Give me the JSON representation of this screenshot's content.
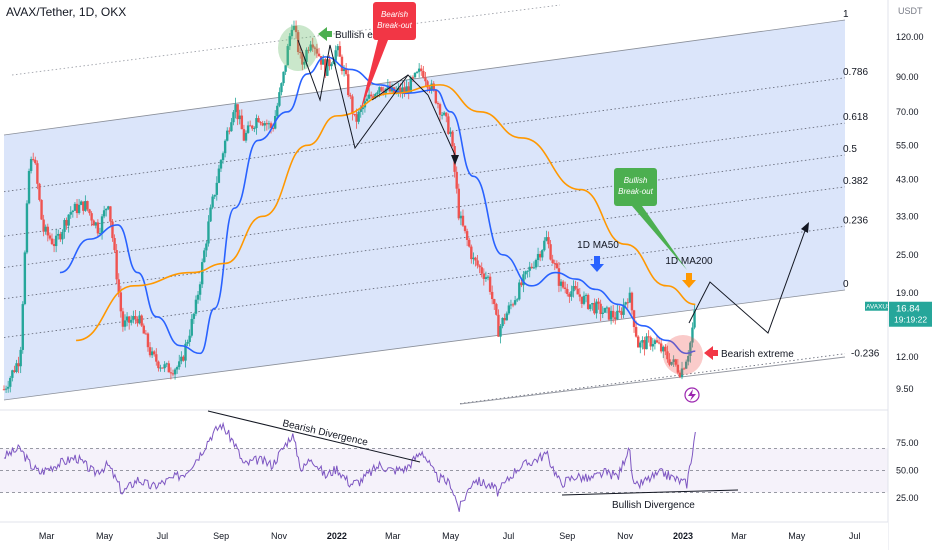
{
  "header": {
    "symbol_title": "AVAX/Tether, 1D, OKX"
  },
  "colors": {
    "candle_up": "#26a69a",
    "candle_down": "#ef5350",
    "ma50": "#2962ff",
    "ma200": "#ff9800",
    "channel_fill": "#cfdcf8",
    "rsi": "#7e57c2",
    "price_tag": "#26a69a",
    "green_label": "#4caf50",
    "red_label": "#f23645"
  },
  "chart_data": [
    {
      "type": "candlestick",
      "title": "AVAX/Tether, 1D, OKX",
      "y_scale": "log",
      "y_unit": "USDT",
      "ylim": [
        8.3,
        150
      ],
      "y_ticks": [
        "120.00",
        "90.00",
        "70.00",
        "55.00",
        "43.00",
        "33.00",
        "25.00",
        "19.00",
        "12.00",
        "9.50"
      ],
      "x_ticks": [
        "Mar",
        "May",
        "Jul",
        "Sep",
        "Nov",
        "2022",
        "Mar",
        "May",
        "Jul",
        "Sep",
        "Nov",
        "2023",
        "Mar",
        "May",
        "Jul"
      ],
      "last_price": {
        "symbol": "AVAXUSDT",
        "value": "16.84",
        "countdown": "19:19:22"
      },
      "price_path": [
        [
          "2021-01-15",
          9.5
        ],
        [
          "2021-02-01",
          12
        ],
        [
          "2021-02-10",
          45
        ],
        [
          "2021-02-15",
          52
        ],
        [
          "2021-02-25",
          30
        ],
        [
          "2021-03-10",
          27
        ],
        [
          "2021-03-25",
          34
        ],
        [
          "2021-04-10",
          36
        ],
        [
          "2021-04-25",
          30
        ],
        [
          "2021-05-05",
          37
        ],
        [
          "2021-05-20",
          15
        ],
        [
          "2021-06-05",
          16
        ],
        [
          "2021-06-20",
          12
        ],
        [
          "2021-07-05",
          11
        ],
        [
          "2021-07-20",
          11.2
        ],
        [
          "2021-08-05",
          17
        ],
        [
          "2021-08-20",
          33
        ],
        [
          "2021-09-01",
          50
        ],
        [
          "2021-09-15",
          75
        ],
        [
          "2021-09-25",
          58
        ],
        [
          "2021-10-10",
          68
        ],
        [
          "2021-10-25",
          62
        ],
        [
          "2021-11-05",
          88
        ],
        [
          "2021-11-15",
          135
        ],
        [
          "2021-11-25",
          98
        ],
        [
          "2021-12-05",
          120
        ],
        [
          "2021-12-20",
          95
        ],
        [
          "2022-01-01",
          110
        ],
        [
          "2022-01-10",
          90
        ],
        [
          "2022-01-20",
          65
        ],
        [
          "2022-02-01",
          75
        ],
        [
          "2022-02-15",
          85
        ],
        [
          "2022-03-01",
          80
        ],
        [
          "2022-03-15",
          82
        ],
        [
          "2022-04-01",
          95
        ],
        [
          "2022-04-15",
          78
        ],
        [
          "2022-05-01",
          60
        ],
        [
          "2022-05-10",
          33
        ],
        [
          "2022-05-25",
          24
        ],
        [
          "2022-06-10",
          21
        ],
        [
          "2022-06-20",
          14.5
        ],
        [
          "2022-07-10",
          19
        ],
        [
          "2022-07-25",
          23
        ],
        [
          "2022-08-10",
          28
        ],
        [
          "2022-08-25",
          20
        ],
        [
          "2022-09-10",
          19
        ],
        [
          "2022-09-25",
          17.5
        ],
        [
          "2022-10-10",
          16.5
        ],
        [
          "2022-10-25",
          16
        ],
        [
          "2022-11-05",
          19
        ],
        [
          "2022-11-15",
          13
        ],
        [
          "2022-12-01",
          13.5
        ],
        [
          "2022-12-15",
          12
        ],
        [
          "2022-12-30",
          10.8
        ],
        [
          "2023-01-08",
          12.8
        ],
        [
          "2023-01-14",
          16.84
        ]
      ],
      "indicators": [
        {
          "name": "1D MA50",
          "values": [
            [
              "2021-03-15",
              22
            ],
            [
              "2021-04-15",
              28
            ],
            [
              "2021-05-15",
              31
            ],
            [
              "2021-06-05",
              22
            ],
            [
              "2021-06-25",
              16
            ],
            [
              "2021-07-20",
              13
            ],
            [
              "2021-08-10",
              12.3
            ],
            [
              "2021-08-25",
              17
            ],
            [
              "2021-09-15",
              35
            ],
            [
              "2021-10-10",
              57
            ],
            [
              "2021-11-10",
              70
            ],
            [
              "2021-12-01",
              92
            ],
            [
              "2021-12-20",
              104
            ],
            [
              "2022-01-15",
              95
            ],
            [
              "2022-02-15",
              85
            ],
            [
              "2022-03-15",
              80
            ],
            [
              "2022-04-15",
              82
            ],
            [
              "2022-05-01",
              70
            ],
            [
              "2022-05-25",
              44
            ],
            [
              "2022-06-25",
              25
            ],
            [
              "2022-07-25",
              20
            ],
            [
              "2022-08-20",
              22
            ],
            [
              "2022-09-10",
              21
            ],
            [
              "2022-10-01",
              19.5
            ],
            [
              "2022-10-25",
              17.5
            ],
            [
              "2022-11-20",
              15
            ],
            [
              "2022-12-15",
              13.5
            ],
            [
              "2023-01-05",
              12.3
            ],
            [
              "2023-01-14",
              12.5
            ]
          ]
        },
        {
          "name": "1D MA200",
          "values": [
            [
              "2021-04-01",
              13.5
            ],
            [
              "2021-06-01",
              20
            ],
            [
              "2021-08-01",
              22
            ],
            [
              "2021-09-05",
              23.5
            ],
            [
              "2021-10-15",
              33
            ],
            [
              "2021-12-01",
              55
            ],
            [
              "2022-01-01",
              68
            ],
            [
              "2022-03-01",
              80
            ],
            [
              "2022-04-20",
              85
            ],
            [
              "2022-06-01",
              70
            ],
            [
              "2022-07-15",
              58
            ],
            [
              "2022-09-15",
              40
            ],
            [
              "2022-11-01",
              27
            ],
            [
              "2022-12-15",
              20
            ],
            [
              "2023-01-14",
              17.5
            ]
          ]
        }
      ]
    },
    {
      "type": "line",
      "title": "RSI",
      "ylim": [
        5,
        105
      ],
      "y_ticks": [
        "75.00",
        "50.00",
        "25.00"
      ],
      "band": [
        30,
        70
      ],
      "series": [
        {
          "name": "",
          "values": [
            [
              "2021-01-15",
              63
            ],
            [
              "2021-02-01",
              70
            ],
            [
              "2021-02-12",
              55
            ],
            [
              "2021-02-22",
              48
            ],
            [
              "2021-03-10",
              55
            ],
            [
              "2021-04-01",
              62
            ],
            [
              "2021-04-20",
              48
            ],
            [
              "2021-05-05",
              55
            ],
            [
              "2021-05-20",
              30
            ],
            [
              "2021-06-05",
              42
            ],
            [
              "2021-06-20",
              35
            ],
            [
              "2021-07-10",
              42
            ],
            [
              "2021-07-25",
              48
            ],
            [
              "2021-08-10",
              65
            ],
            [
              "2021-08-20",
              80
            ],
            [
              "2021-09-01",
              92
            ],
            [
              "2021-09-15",
              75
            ],
            [
              "2021-09-25",
              55
            ],
            [
              "2021-10-10",
              60
            ],
            [
              "2021-10-25",
              55
            ],
            [
              "2021-11-05",
              70
            ],
            [
              "2021-11-15",
              83
            ],
            [
              "2021-11-25",
              50
            ],
            [
              "2021-12-05",
              62
            ],
            [
              "2021-12-20",
              45
            ],
            [
              "2022-01-01",
              52
            ],
            [
              "2022-01-15",
              38
            ],
            [
              "2022-01-25",
              40
            ],
            [
              "2022-02-15",
              55
            ],
            [
              "2022-03-01",
              50
            ],
            [
              "2022-03-15",
              52
            ],
            [
              "2022-04-01",
              68
            ],
            [
              "2022-04-15",
              45
            ],
            [
              "2022-05-01",
              38
            ],
            [
              "2022-05-10",
              15
            ],
            [
              "2022-05-25",
              42
            ],
            [
              "2022-06-15",
              35
            ],
            [
              "2022-06-20",
              30
            ],
            [
              "2022-07-10",
              52
            ],
            [
              "2022-07-25",
              58
            ],
            [
              "2022-08-10",
              65
            ],
            [
              "2022-08-25",
              38
            ],
            [
              "2022-09-10",
              45
            ],
            [
              "2022-09-25",
              42
            ],
            [
              "2022-10-10",
              48
            ],
            [
              "2022-10-25",
              45
            ],
            [
              "2022-11-05",
              72
            ],
            [
              "2022-11-10",
              34
            ],
            [
              "2022-11-25",
              42
            ],
            [
              "2022-12-10",
              48
            ],
            [
              "2022-12-25",
              42
            ],
            [
              "2023-01-05",
              38
            ],
            [
              "2023-01-10",
              62
            ],
            [
              "2023-01-14",
              85
            ]
          ]
        }
      ]
    }
  ],
  "fib_levels": [
    {
      "label": "1",
      "value": 1
    },
    {
      "label": "0.786",
      "value": 0.786
    },
    {
      "label": "0.618",
      "value": 0.618
    },
    {
      "label": "0.5",
      "value": 0.5
    },
    {
      "label": "0.382",
      "value": 0.382
    },
    {
      "label": "0.236",
      "value": 0.236
    },
    {
      "label": "0",
      "value": 0
    },
    {
      "label": "-0.236",
      "value": -0.236
    }
  ],
  "annotations": {
    "bullish_extreme": "Bullish extreme",
    "bearish_breakout": [
      "Bearish",
      "Break-out"
    ],
    "bullish_breakout": [
      "Bullish",
      "Break-out"
    ],
    "ma50_label": "1D MA50",
    "ma200_label": "1D MA200",
    "bearish_extreme": "Bearish extreme",
    "bearish_divergence": "Bearish Divergence",
    "bullish_divergence": "Bullish Divergence",
    "lightning_icon": "lightning-icon",
    "currency_label": "USDT"
  }
}
